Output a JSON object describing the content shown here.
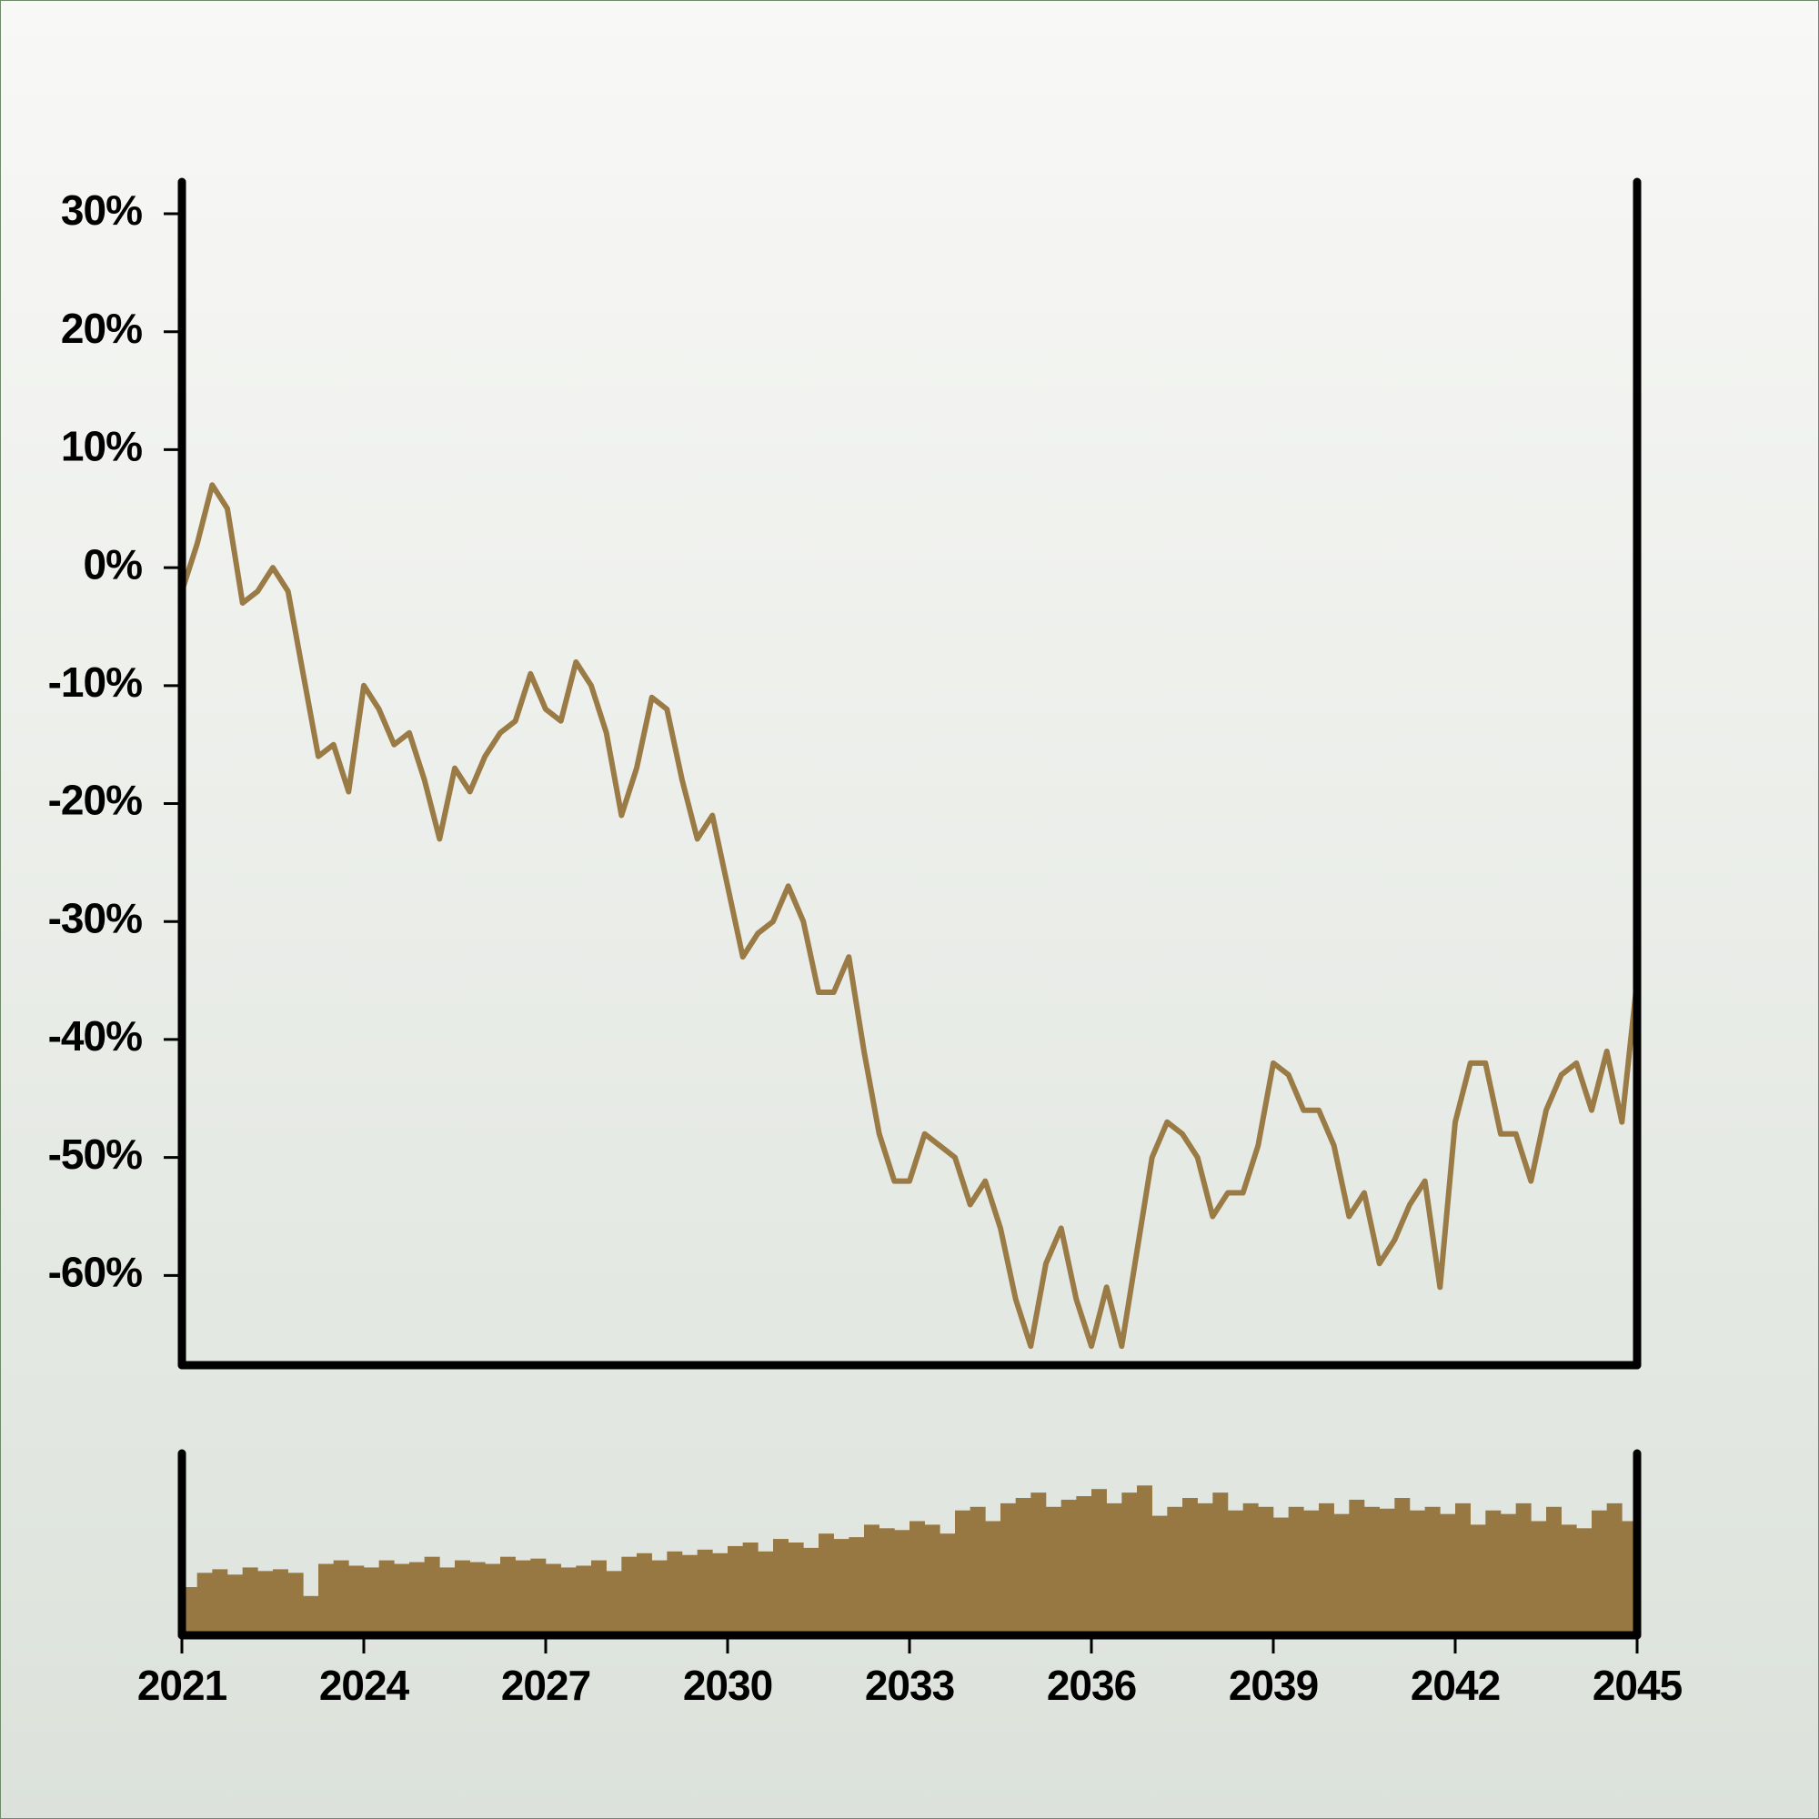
{
  "chart_data": [
    {
      "type": "line",
      "x": [
        2021,
        2021.25,
        2021.5,
        2021.75,
        2022,
        2022.25,
        2022.5,
        2022.75,
        2023,
        2023.25,
        2023.5,
        2023.75,
        2024,
        2024.25,
        2024.5,
        2024.75,
        2025,
        2025.25,
        2025.5,
        2025.75,
        2026,
        2026.25,
        2026.5,
        2026.75,
        2027,
        2027.25,
        2027.5,
        2027.75,
        2028,
        2028.25,
        2028.5,
        2028.75,
        2029,
        2029.25,
        2029.5,
        2029.75,
        2030,
        2030.25,
        2030.5,
        2030.75,
        2031,
        2031.25,
        2031.5,
        2031.75,
        2032,
        2032.25,
        2032.5,
        2032.75,
        2033,
        2033.25,
        2033.5,
        2033.75,
        2034,
        2034.25,
        2034.5,
        2034.75,
        2035,
        2035.25,
        2035.5,
        2035.75,
        2036,
        2036.25,
        2036.5,
        2036.75,
        2037,
        2037.25,
        2037.5,
        2037.75,
        2038,
        2038.25,
        2038.5,
        2038.75,
        2039,
        2039.25,
        2039.5,
        2039.75,
        2040,
        2040.25,
        2040.5,
        2040.75,
        2041,
        2041.25,
        2041.5,
        2041.75,
        2042,
        2042.25,
        2042.5,
        2042.75,
        2043,
        2043.25,
        2043.5,
        2043.75,
        2044,
        2044.25,
        2044.5,
        2044.75,
        2045
      ],
      "values": [
        -2,
        2,
        7,
        5,
        -3,
        -2,
        0,
        -2,
        -9,
        -16,
        -15,
        -19,
        -10,
        -12,
        -15,
        -14,
        -18,
        -23,
        -17,
        -19,
        -16,
        -14,
        -13,
        -9,
        -12,
        -13,
        -8,
        -10,
        -14,
        -21,
        -17,
        -11,
        -12,
        -18,
        -23,
        -21,
        -27,
        -33,
        -31,
        -30,
        -27,
        -30,
        -36,
        -36,
        -33,
        -41,
        -48,
        -52,
        -52,
        -48,
        -49,
        -50,
        -54,
        -52,
        -56,
        -62,
        -66,
        -59,
        -56,
        -62,
        -66,
        -61,
        -66,
        -58,
        -50,
        -47,
        -48,
        -50,
        -55,
        -53,
        -53,
        -49,
        -42,
        -43,
        -46,
        -46,
        -49,
        -55,
        -53,
        -59,
        -57,
        -54,
        -52,
        -61,
        -47,
        -42,
        -42,
        -48,
        -48,
        -52,
        -46,
        -43,
        -42,
        -46,
        -41,
        -47,
        -35
      ],
      "color": "#9a7b45",
      "xlim": [
        2021,
        2045
      ],
      "ylim": [
        -67.3,
        32.7
      ],
      "yticks": [
        {
          "value": 30,
          "label": "30%"
        },
        {
          "value": 20,
          "label": "20%"
        },
        {
          "value": 10,
          "label": "10%"
        },
        {
          "value": 0,
          "label": "0%"
        },
        {
          "value": -10,
          "label": "-10%"
        },
        {
          "value": -20,
          "label": "-20%"
        },
        {
          "value": -30,
          "label": "-30%"
        },
        {
          "value": -40,
          "label": "-40%"
        },
        {
          "value": -50,
          "label": "-50%"
        },
        {
          "value": -60,
          "label": "-60%"
        }
      ]
    },
    {
      "type": "bar",
      "x": [
        2021.125,
        2021.375,
        2021.625,
        2021.875,
        2022.125,
        2022.375,
        2022.625,
        2022.875,
        2023.125,
        2023.375,
        2023.625,
        2023.875,
        2024.125,
        2024.375,
        2024.625,
        2024.875,
        2025.125,
        2025.375,
        2025.625,
        2025.875,
        2026.125,
        2026.375,
        2026.625,
        2026.875,
        2027.125,
        2027.375,
        2027.625,
        2027.875,
        2028.125,
        2028.375,
        2028.625,
        2028.875,
        2029.125,
        2029.375,
        2029.625,
        2029.875,
        2030.125,
        2030.375,
        2030.625,
        2030.875,
        2031.125,
        2031.375,
        2031.625,
        2031.875,
        2032.125,
        2032.375,
        2032.625,
        2032.875,
        2033.125,
        2033.375,
        2033.625,
        2033.875,
        2034.125,
        2034.375,
        2034.625,
        2034.875,
        2035.125,
        2035.375,
        2035.625,
        2035.875,
        2036.125,
        2036.375,
        2036.625,
        2036.875,
        2037.125,
        2037.375,
        2037.625,
        2037.875,
        2038.125,
        2038.375,
        2038.625,
        2038.875,
        2039.125,
        2039.375,
        2039.625,
        2039.875,
        2040.125,
        2040.375,
        2040.625,
        2040.875,
        2041.125,
        2041.375,
        2041.625,
        2041.875,
        2042.125,
        2042.375,
        2042.625,
        2042.875,
        2043.125,
        2043.375,
        2043.625,
        2043.875,
        2044.125,
        2044.375,
        2044.625,
        2044.875
      ],
      "values": [
        25,
        33,
        35,
        32,
        36,
        34,
        35,
        33,
        20,
        38,
        40,
        37,
        36,
        40,
        38,
        39,
        42,
        36,
        40,
        39,
        38,
        42,
        40,
        41,
        38,
        36,
        37,
        40,
        34,
        42,
        44,
        40,
        45,
        43,
        46,
        44,
        48,
        50,
        45,
        52,
        50,
        47,
        55,
        52,
        53,
        60,
        58,
        57,
        62,
        60,
        55,
        68,
        70,
        62,
        72,
        75,
        78,
        70,
        74,
        76,
        80,
        72,
        78,
        82,
        65,
        70,
        75,
        72,
        78,
        68,
        72,
        70,
        64,
        70,
        68,
        72,
        66,
        74,
        70,
        69,
        75,
        68,
        70,
        66,
        72,
        60,
        68,
        66,
        72,
        62,
        70,
        60,
        58,
        68,
        72,
        62
      ],
      "color": "#977842",
      "xlim": [
        2021,
        2045
      ],
      "ylim": [
        0,
        100
      ],
      "xticks": [
        2021,
        2024,
        2027,
        2030,
        2033,
        2036,
        2039,
        2042,
        2045
      ]
    }
  ]
}
